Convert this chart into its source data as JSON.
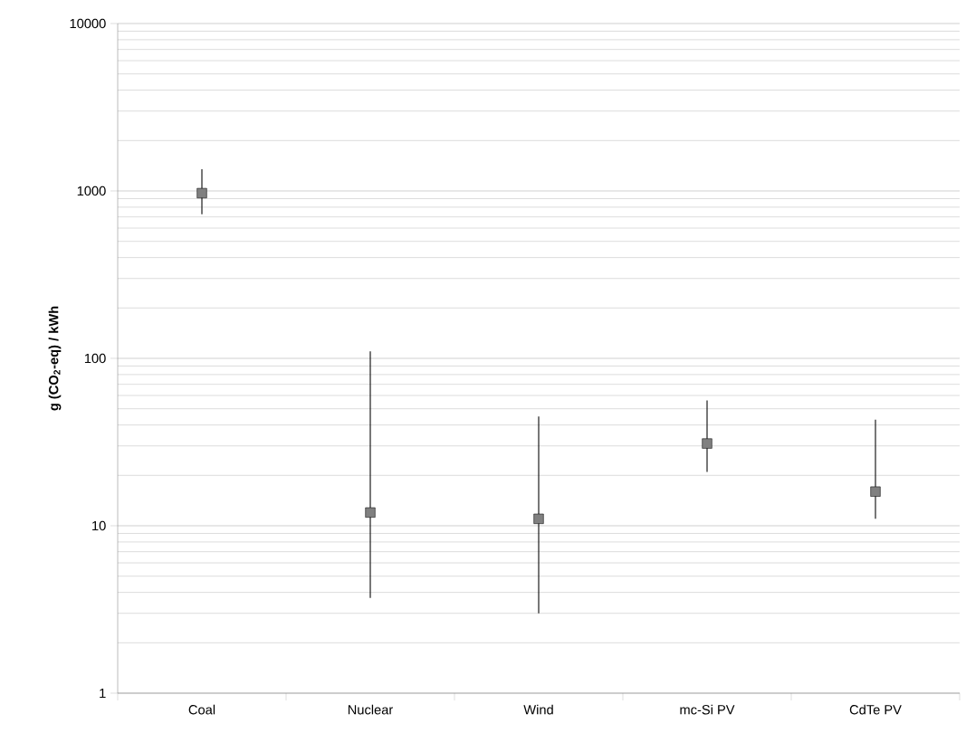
{
  "chart_data": {
    "type": "scatter",
    "ylabel": "g (CO$_{2}$-eq) / kWh",
    "categories": [
      "Coal",
      "Nuclear",
      "Wind",
      "mc-Si PV",
      "CdTe PV"
    ],
    "values": [
      970,
      12,
      11,
      31,
      16
    ],
    "errors": [
      [
        725,
        1350
      ],
      [
        3.7,
        110
      ],
      [
        3,
        45
      ],
      [
        21,
        56
      ],
      [
        11,
        43
      ]
    ],
    "color": "#808080",
    "marker": "square",
    "log": "y",
    "ylim": [
      1,
      10000
    ],
    "yticks": [
      1,
      10,
      100,
      1000,
      10000
    ],
    "grid": "y"
  }
}
